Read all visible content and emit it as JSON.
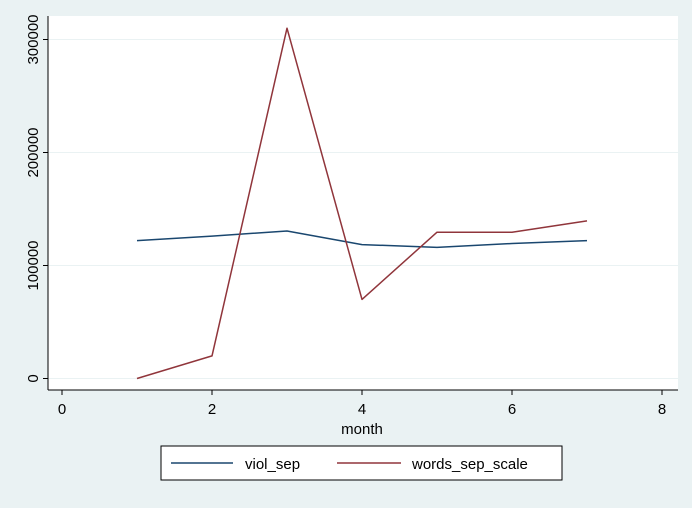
{
  "chart_data": {
    "type": "line",
    "title": "",
    "xlabel": "month",
    "ylabel": "",
    "xlim": [
      0,
      8
    ],
    "ylim": [
      0,
      320000
    ],
    "x_ticks": [
      0,
      2,
      4,
      6,
      8
    ],
    "x_tick_labels": [
      "0",
      "2",
      "4",
      "6",
      "8"
    ],
    "y_ticks": [
      0,
      100000,
      200000,
      300000
    ],
    "y_tick_labels": [
      "0",
      "100000",
      "200000",
      "300000"
    ],
    "grid": "horizontal",
    "legend_position": "bottom",
    "x": [
      1,
      2,
      3,
      4,
      5,
      6,
      7
    ],
    "series": [
      {
        "name": "viol_sep",
        "color": "#1a476f",
        "values": [
          122000,
          126000,
          130500,
          118500,
          116000,
          119500,
          122000
        ]
      },
      {
        "name": "words_sep_scale",
        "color": "#90353b",
        "values": [
          0,
          20000,
          310000,
          70000,
          129500,
          129500,
          139500
        ]
      }
    ]
  },
  "colors": {
    "background": "#eaf2f3",
    "plot_background": "#ffffff",
    "grid": "#eaf2f3"
  }
}
